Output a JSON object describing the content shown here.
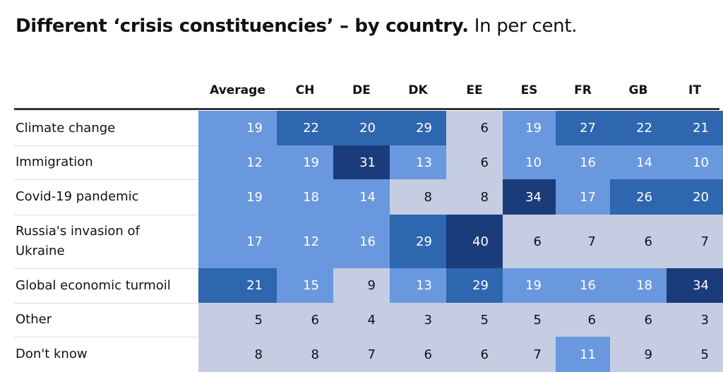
{
  "title": {
    "bold": "Different ‘crisis constituencies’ – by country.",
    "normal": "In per cent."
  },
  "colors": {
    "very_dark": "#1a3c7a",
    "dark": "#2e66b0",
    "mid": "#6a98de",
    "light": "#c4cde2",
    "text_light": "#ffffff",
    "text_dark": "#111111"
  },
  "chart_data": {
    "type": "table",
    "columns": [
      "Average",
      "CH",
      "DE",
      "DK",
      "EE",
      "ES",
      "FR",
      "GB",
      "IT"
    ],
    "rows": [
      {
        "label": "Climate change",
        "values": [
          19,
          22,
          20,
          29,
          6,
          19,
          27,
          22,
          21
        ]
      },
      {
        "label": "Immigration",
        "values": [
          12,
          19,
          31,
          13,
          6,
          10,
          16,
          14,
          10
        ]
      },
      {
        "label": "Covid-19 pandemic",
        "values": [
          19,
          18,
          14,
          8,
          8,
          34,
          17,
          26,
          20
        ]
      },
      {
        "label": "Russia's invasion of Ukraine",
        "values": [
          17,
          12,
          16,
          29,
          40,
          6,
          7,
          6,
          7
        ]
      },
      {
        "label": "Global economic turmoil",
        "values": [
          21,
          15,
          9,
          13,
          29,
          19,
          16,
          18,
          34
        ]
      },
      {
        "label": "Other",
        "values": [
          5,
          6,
          4,
          3,
          5,
          5,
          6,
          6,
          3
        ]
      },
      {
        "label": "Don't know",
        "values": [
          8,
          8,
          7,
          6,
          6,
          7,
          11,
          9,
          5
        ]
      }
    ]
  }
}
